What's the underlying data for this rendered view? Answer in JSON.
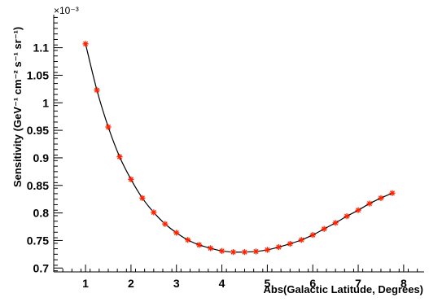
{
  "chart_data": {
    "type": "scatter",
    "xlabel": "Abs(Galactic Latitude, Degrees)",
    "ylabel": "Sensitivity (GeV⁻¹ cm⁻² s⁻¹ sr⁻¹)",
    "y_exponent_label": "×10⁻³",
    "xlim": [
      0.3,
      8.45
    ],
    "ylim": [
      0.693,
      1.16
    ],
    "x_ticks": [
      1,
      2,
      3,
      4,
      5,
      6,
      7,
      8
    ],
    "y_ticks": [
      0.7,
      0.75,
      0.8,
      0.85,
      0.9,
      0.95,
      1,
      1.05,
      1.1
    ],
    "y_tick_labels": [
      "0.7",
      "0.75",
      "0.8",
      "0.85",
      "0.9",
      "0.95",
      "1",
      "1.05",
      "1.1"
    ],
    "grid": false,
    "marker_color": "#ff2200",
    "line_color": "#000000",
    "series": [
      {
        "x": [
          1.0,
          1.25,
          1.5,
          1.75,
          2.0,
          2.25,
          2.5,
          2.75,
          3.0,
          3.25,
          3.5,
          3.75,
          4.0,
          4.25,
          4.5,
          4.75,
          5.0,
          5.25,
          5.5,
          5.75,
          6.0,
          6.25,
          6.5,
          6.75,
          7.0,
          7.25,
          7.5,
          7.75
        ],
        "y": [
          1.107,
          1.023,
          0.956,
          0.902,
          0.861,
          0.827,
          0.801,
          0.78,
          0.764,
          0.751,
          0.742,
          0.736,
          0.731,
          0.729,
          0.729,
          0.73,
          0.733,
          0.738,
          0.744,
          0.751,
          0.76,
          0.771,
          0.782,
          0.794,
          0.805,
          0.817,
          0.827,
          0.836
        ]
      }
    ]
  }
}
